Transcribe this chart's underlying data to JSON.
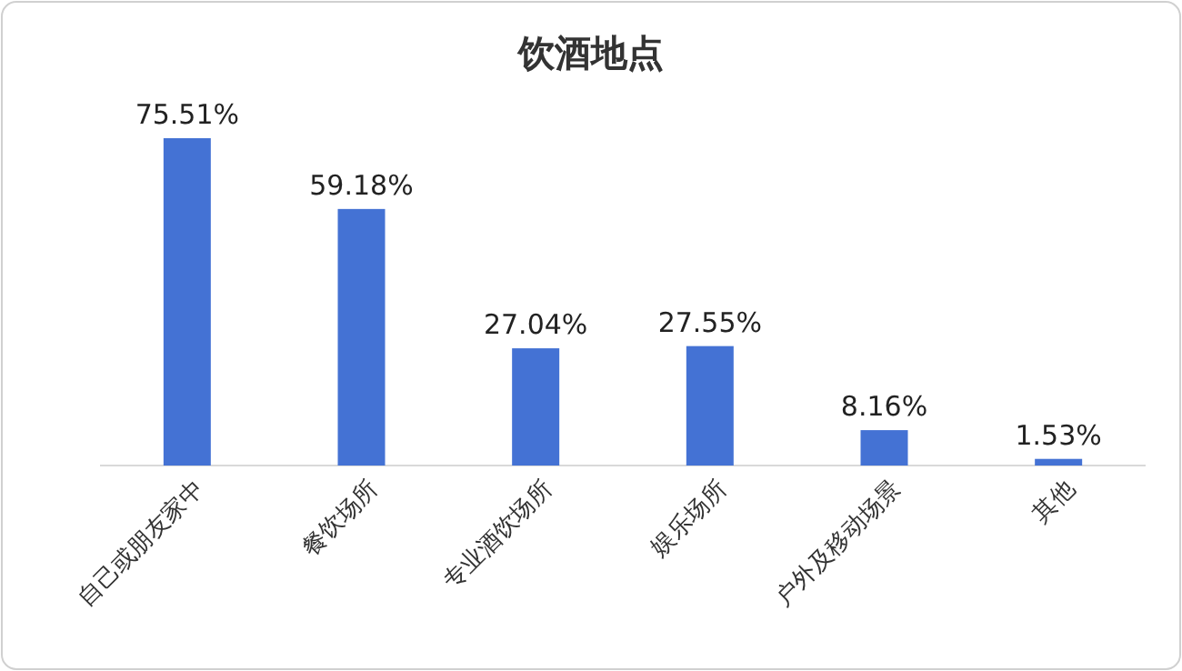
{
  "chart_data": {
    "type": "bar",
    "title": "饮酒地点",
    "categories": [
      "自己或朋友家中",
      "餐饮场所",
      "专业酒饮场所",
      "娱乐场所",
      "户外及移动场景",
      "其他"
    ],
    "values": [
      75.51,
      59.18,
      27.04,
      27.55,
      8.16,
      1.53
    ],
    "value_labels": [
      "75.51%",
      "59.18%",
      "27.04%",
      "27.55%",
      "8.16%",
      "1.53%"
    ],
    "color": "#4472d4"
  }
}
